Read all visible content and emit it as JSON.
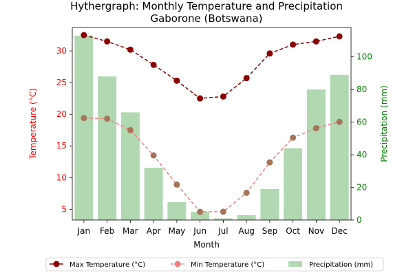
{
  "chart_data": {
    "type": "bar",
    "title": "Hythergraph: Monthly Temperature and Precipitation",
    "subtitle": "Gaborone (Botswana)",
    "xlabel": "Month",
    "ylabel_left": "Temperature (°C)",
    "ylabel_right": "Precipitation (mm)",
    "categories": [
      "Jan",
      "Feb",
      "Mar",
      "Apr",
      "May",
      "Jun",
      "Jul",
      "Aug",
      "Sep",
      "Oct",
      "Nov",
      "Dec"
    ],
    "ylim_left": [
      3.3,
      33.7
    ],
    "ylim_right": [
      0,
      118
    ],
    "yticks_left": [
      5,
      10,
      15,
      20,
      25,
      30
    ],
    "yticks_right": [
      0,
      20,
      40,
      60,
      80,
      100
    ],
    "grid": false,
    "legend_position": "bottom",
    "colors": {
      "max_temp": "#8b0000",
      "min_temp": "#f08080",
      "min_temp_marker": "#a67458",
      "precip": "#b2d8b2",
      "left_axis": "#ff0000",
      "right_axis": "#008000"
    },
    "series": [
      {
        "name": "Max Temperature (°C)",
        "axis": "left",
        "kind": "line",
        "values": [
          32.5,
          31.5,
          30.2,
          27.8,
          25.3,
          22.5,
          22.8,
          25.7,
          29.6,
          31.0,
          31.5,
          32.3
        ]
      },
      {
        "name": "Min Temperature (°C)",
        "axis": "left",
        "kind": "dashed-line",
        "values": [
          19.4,
          19.3,
          17.5,
          13.5,
          8.9,
          4.6,
          4.6,
          7.6,
          12.4,
          16.3,
          17.8,
          18.8
        ]
      },
      {
        "name": "Precipitation (mm)",
        "axis": "right",
        "kind": "bar",
        "values": [
          113,
          88,
          66,
          32,
          11,
          5,
          1,
          3,
          19,
          44,
          80,
          89
        ]
      }
    ]
  }
}
